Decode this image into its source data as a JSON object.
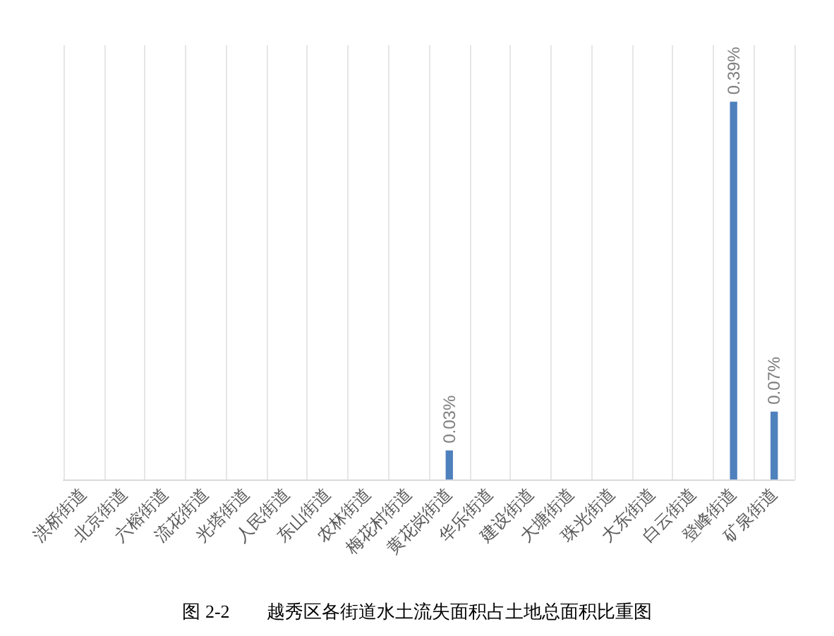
{
  "chart_data": {
    "type": "bar",
    "title": "图 2-2        越秀区各街道水土流失面积占土地总面积比重图",
    "categories": [
      "洪桥街道",
      "北京街道",
      "六榕街道",
      "流花街道",
      "光塔街道",
      "人民街道",
      "东山街道",
      "农林街道",
      "梅花村街道",
      "黄花岗街道",
      "华乐街道",
      "建设街道",
      "大塘街道",
      "珠光街道",
      "大东街道",
      "白云街道",
      "登峰街道",
      "矿泉街道"
    ],
    "values": [
      null,
      null,
      null,
      null,
      null,
      null,
      null,
      null,
      null,
      0.03,
      null,
      null,
      null,
      null,
      null,
      null,
      0.39,
      0.07
    ],
    "value_labels": [
      null,
      null,
      null,
      null,
      null,
      null,
      null,
      null,
      null,
      "0.03%",
      null,
      null,
      null,
      null,
      null,
      null,
      "0.39%",
      "0.07%"
    ],
    "color": "#4f81bd",
    "grid": "x",
    "tick_labels": "x"
  }
}
